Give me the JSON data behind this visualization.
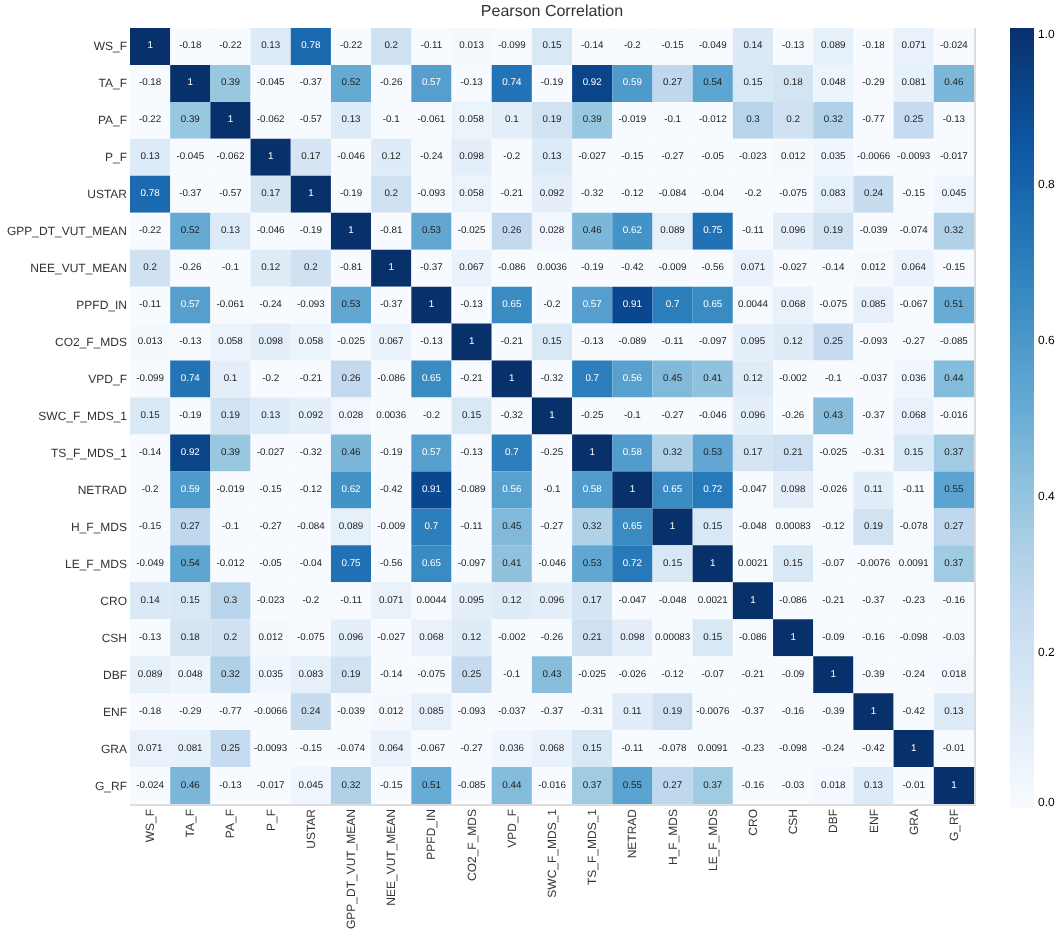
{
  "chart_data": {
    "type": "heatmap",
    "title": "Pearson Correlation",
    "categories": [
      "WS_F",
      "TA_F",
      "PA_F",
      "P_F",
      "USTAR",
      "GPP_DT_VUT_MEAN",
      "NEE_VUT_MEAN",
      "PPFD_IN",
      "CO2_F_MDS",
      "VPD_F",
      "SWC_F_MDS_1",
      "TS_F_MDS_1",
      "NETRAD",
      "H_F_MDS",
      "LE_F_MDS",
      "CRO",
      "CSH",
      "DBF",
      "ENF",
      "GRA",
      "G_RF"
    ],
    "y_categories": [
      "WS_F",
      "TA_F",
      "PA_F",
      "P_F",
      "USTAR",
      "GPP_DT_VUT_MEAN",
      "NEE_VUT_MEAN",
      "PPFD_IN",
      "CO2_F_MDS",
      "VPD_F",
      "SWC_F_MDS_1",
      "TS_F_MDS_1",
      "NETRAD",
      "H_F_MDS",
      "LE_F_MDS",
      "CRO",
      "CSH",
      "DBF",
      "ENF",
      "GRA",
      "G_RF"
    ],
    "cells": [
      [
        1,
        -0.18,
        -0.22,
        0.13,
        0.78,
        -0.22,
        0.2,
        -0.11,
        0.013,
        -0.099,
        0.15,
        -0.14,
        -0.2,
        -0.15,
        -0.049,
        0.14,
        -0.13,
        0.089,
        -0.18,
        0.071,
        -0.024
      ],
      [
        -0.18,
        1,
        0.39,
        -0.045,
        -0.37,
        0.52,
        -0.26,
        0.57,
        -0.13,
        0.74,
        -0.19,
        0.92,
        0.59,
        0.27,
        0.54,
        0.15,
        0.18,
        0.048,
        -0.29,
        0.081,
        0.46
      ],
      [
        -0.22,
        0.39,
        1,
        -0.062,
        -0.57,
        0.13,
        -0.1,
        -0.061,
        0.058,
        0.1,
        0.19,
        0.39,
        -0.019,
        -0.1,
        -0.012,
        0.3,
        0.2,
        0.32,
        -0.77,
        0.25,
        -0.13
      ],
      [
        0.13,
        -0.045,
        -0.062,
        1,
        0.17,
        -0.046,
        0.12,
        -0.24,
        0.098,
        -0.2,
        0.13,
        -0.027,
        -0.15,
        -0.27,
        -0.05,
        -0.023,
        0.012,
        0.035,
        -0.0066,
        -0.0093,
        -0.017
      ],
      [
        0.78,
        -0.37,
        -0.57,
        0.17,
        1,
        -0.19,
        0.2,
        -0.093,
        0.058,
        -0.21,
        0.092,
        -0.32,
        -0.12,
        -0.084,
        -0.04,
        -0.2,
        -0.075,
        0.083,
        0.24,
        -0.15,
        0.045
      ],
      [
        -0.22,
        0.52,
        0.13,
        -0.046,
        -0.19,
        1,
        -0.81,
        0.53,
        -0.025,
        0.26,
        0.028,
        0.46,
        0.62,
        0.089,
        0.75,
        -0.11,
        0.096,
        0.19,
        -0.039,
        -0.074,
        0.32
      ],
      [
        0.2,
        -0.26,
        -0.1,
        0.12,
        0.2,
        -0.81,
        1,
        -0.37,
        0.067,
        -0.086,
        0.0036,
        -0.19,
        -0.42,
        -0.009,
        -0.56,
        0.071,
        -0.027,
        -0.14,
        0.012,
        0.064,
        -0.15
      ],
      [
        -0.11,
        0.57,
        -0.061,
        -0.24,
        -0.093,
        0.53,
        -0.37,
        1,
        -0.13,
        0.65,
        -0.2,
        0.57,
        0.91,
        0.7,
        0.65,
        0.0044,
        0.068,
        -0.075,
        0.085,
        -0.067,
        0.51
      ],
      [
        0.013,
        -0.13,
        0.058,
        0.098,
        0.058,
        -0.025,
        0.067,
        -0.13,
        1,
        -0.21,
        0.15,
        -0.13,
        -0.089,
        -0.11,
        -0.097,
        0.095,
        0.12,
        0.25,
        -0.093,
        -0.27,
        -0.085
      ],
      [
        -0.099,
        0.74,
        0.1,
        -0.2,
        -0.21,
        0.26,
        -0.086,
        0.65,
        -0.21,
        1,
        -0.32,
        0.7,
        0.56,
        0.45,
        0.41,
        0.12,
        -0.002,
        -0.1,
        -0.037,
        0.036,
        0.44
      ],
      [
        0.15,
        -0.19,
        0.19,
        0.13,
        0.092,
        0.028,
        0.0036,
        -0.2,
        0.15,
        -0.32,
        1,
        -0.25,
        -0.1,
        -0.27,
        -0.046,
        0.096,
        -0.26,
        0.43,
        -0.37,
        0.068,
        -0.016
      ],
      [
        -0.14,
        0.92,
        0.39,
        -0.027,
        -0.32,
        0.46,
        -0.19,
        0.57,
        -0.13,
        0.7,
        -0.25,
        1,
        0.58,
        0.32,
        0.53,
        0.17,
        0.21,
        -0.025,
        -0.31,
        0.15,
        0.37
      ],
      [
        -0.2,
        0.59,
        -0.019,
        -0.15,
        -0.12,
        0.62,
        -0.42,
        0.91,
        -0.089,
        0.56,
        -0.1,
        0.58,
        1,
        0.65,
        0.72,
        -0.047,
        0.098,
        -0.026,
        0.11,
        -0.11,
        0.55
      ],
      [
        -0.15,
        0.27,
        -0.1,
        -0.27,
        -0.084,
        0.089,
        -0.009,
        0.7,
        -0.11,
        0.45,
        -0.27,
        0.32,
        0.65,
        1,
        0.15,
        -0.048,
        0.00083,
        -0.12,
        0.19,
        -0.078,
        0.27
      ],
      [
        -0.049,
        0.54,
        -0.012,
        -0.05,
        -0.04,
        0.75,
        -0.56,
        0.65,
        -0.097,
        0.41,
        -0.046,
        0.53,
        0.72,
        0.15,
        1,
        0.0021,
        0.15,
        -0.07,
        -0.0076,
        0.0091,
        0.37
      ],
      [
        0.14,
        0.15,
        0.3,
        -0.023,
        -0.2,
        -0.11,
        0.071,
        0.0044,
        0.095,
        0.12,
        0.096,
        0.17,
        -0.047,
        -0.048,
        0.0021,
        1,
        -0.086,
        -0.21,
        -0.37,
        -0.23,
        -0.16
      ],
      [
        -0.13,
        0.18,
        0.2,
        0.012,
        -0.075,
        0.096,
        -0.027,
        0.068,
        0.12,
        -0.002,
        -0.26,
        0.21,
        0.098,
        0.00083,
        0.15,
        -0.086,
        1,
        -0.09,
        -0.16,
        -0.098,
        -0.03
      ],
      [
        0.089,
        0.048,
        0.32,
        0.035,
        0.083,
        0.19,
        -0.14,
        -0.075,
        0.25,
        -0.1,
        0.43,
        -0.025,
        -0.026,
        -0.12,
        -0.07,
        -0.21,
        -0.09,
        1,
        -0.39,
        -0.24,
        0.018
      ],
      [
        -0.18,
        -0.29,
        -0.77,
        -0.0066,
        0.24,
        -0.039,
        0.012,
        0.085,
        -0.093,
        -0.037,
        -0.37,
        -0.31,
        0.11,
        0.19,
        -0.0076,
        -0.37,
        -0.16,
        -0.39,
        1,
        -0.42,
        0.13
      ],
      [
        0.071,
        0.081,
        0.25,
        -0.0093,
        -0.15,
        -0.074,
        0.064,
        -0.067,
        -0.27,
        0.036,
        0.068,
        0.15,
        -0.11,
        -0.078,
        0.0091,
        -0.23,
        -0.098,
        -0.24,
        -0.42,
        1,
        -0.01
      ],
      [
        -0.024,
        0.46,
        -0.13,
        -0.017,
        0.045,
        0.32,
        -0.15,
        0.51,
        -0.085,
        0.44,
        -0.016,
        0.37,
        0.55,
        0.27,
        0.37,
        -0.16,
        -0.03,
        0.018,
        0.13,
        -0.01,
        1
      ]
    ],
    "clim": [
      0,
      1
    ],
    "cticks": [
      {
        "value": 0,
        "label": "0.0"
      },
      {
        "value": 0.2,
        "label": "0.2"
      },
      {
        "value": 0.4,
        "label": "0.4"
      },
      {
        "value": 0.6,
        "label": "0.6"
      },
      {
        "value": 0.8,
        "label": "0.8"
      },
      {
        "value": 1,
        "label": "1.0"
      }
    ],
    "data_labels": true
  }
}
